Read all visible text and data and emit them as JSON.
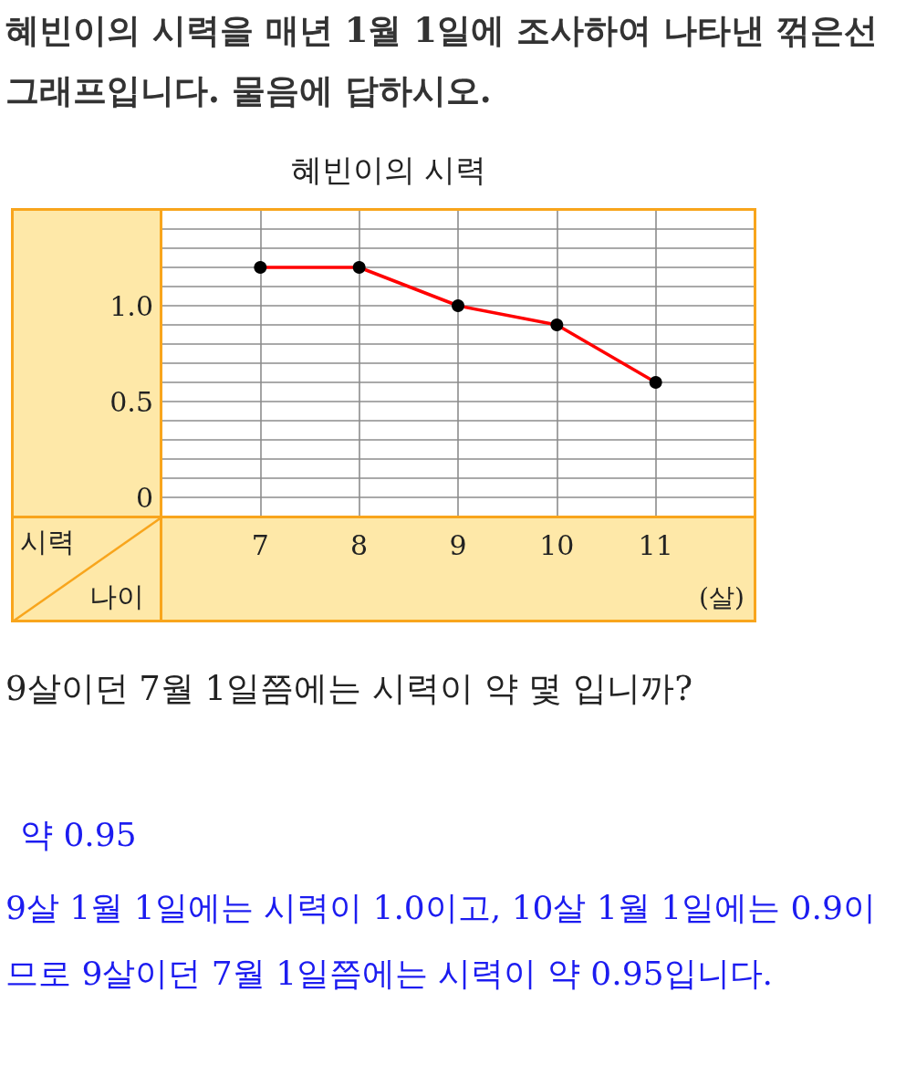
{
  "chart_data": {
    "type": "line",
    "title": "혜빈이의 시력",
    "xlabel": "나이",
    "ylabel": "시력",
    "annotations": [
      "혜빈이의 시력을 매년 1월 1일에 조사하여 나타낸 꺾은선그래프입니다. 물음에 답하시오.",
      "(살)",
      "9살이던 7월 1일쯤에는 시력이 약 몇 입니까?",
      "약 0.95",
      "9살 1월 1일에는 시력이 1.0이고, 10살 1월 1일에는 0.9이므로 9살이던 7월 1일쯤에는 시력이 약 0.95입니다."
    ],
    "x": [
      7,
      8,
      9,
      10,
      11
    ],
    "series": [
      {
        "color": "#ff0000",
        "values": [
          1.2,
          1.2,
          1.0,
          0.9,
          0.6
        ]
      }
    ],
    "xlim": [
      6,
      12
    ],
    "xticks": [
      7,
      8,
      9,
      10,
      11
    ],
    "ylim": [
      -0.1,
      1.5
    ],
    "yticks": [
      0,
      {
        "value": 0.1,
        "label": null
      },
      {
        "value": 0.2,
        "label": null
      },
      {
        "value": 0.3,
        "label": null
      },
      {
        "value": 0.4,
        "label": null
      },
      0.5,
      {
        "value": 0.6,
        "label": null
      },
      {
        "value": 0.7,
        "label": null
      },
      {
        "value": 0.8,
        "label": null
      },
      {
        "value": 0.9,
        "label": null
      },
      {
        "value": 1,
        "label": "1.0"
      },
      {
        "value": 1.1,
        "label": null
      },
      {
        "value": 1.2,
        "label": null
      },
      {
        "value": 1.3,
        "label": null
      },
      {
        "value": 1.4,
        "label": null
      }
    ],
    "grid": true,
    "marker": "circle",
    "line_style": "solid"
  }
}
